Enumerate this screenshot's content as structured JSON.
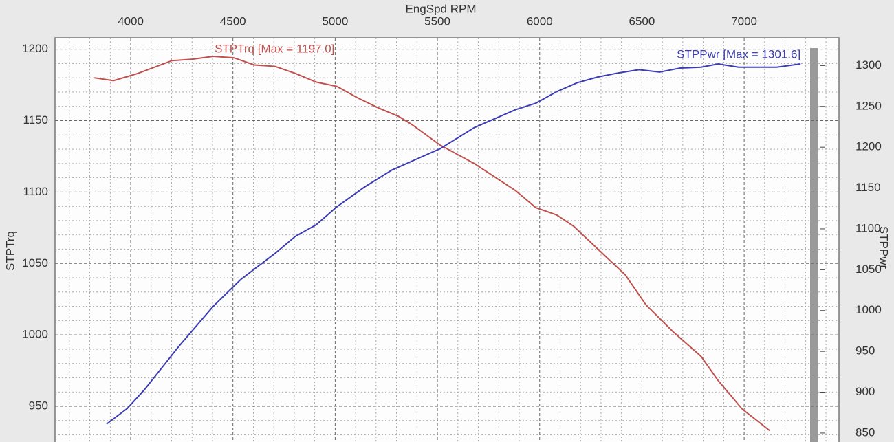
{
  "chart_data": {
    "type": "line",
    "x_label": "EngSpd RPM",
    "y_label": "STPTrq",
    "y2_label": "STPPwr",
    "xlim": [
      3630,
      7457
    ],
    "xticks": [
      4000,
      4500,
      5000,
      5500,
      6000,
      6500,
      7000
    ],
    "x_minor_ticks": [
      3700,
      3800,
      3900,
      4100,
      4200,
      4300,
      4400,
      4600,
      4700,
      4800,
      4900,
      5100,
      5200,
      5300,
      5400,
      5600,
      5700,
      5800,
      5900,
      6100,
      6200,
      6300,
      6400,
      6600,
      6700,
      6800,
      6900,
      7100,
      7200,
      7300,
      7400
    ],
    "ylim": [
      925,
      1208
    ],
    "yticks": [
      950,
      1000,
      1050,
      1100,
      1150,
      1200
    ],
    "y_minor_ticks": [
      930,
      940,
      960,
      970,
      980,
      990,
      1010,
      1020,
      1030,
      1040,
      1060,
      1070,
      1080,
      1090,
      1110,
      1120,
      1130,
      1140,
      1160,
      1170,
      1180,
      1190
    ],
    "y2lim": [
      839,
      1334
    ],
    "y2ticks": [
      850,
      900,
      950,
      1000,
      1050,
      1100,
      1150,
      1200,
      1250,
      1300
    ],
    "grid": true,
    "series": [
      {
        "name": "STPTrq [Max = 1197.0]",
        "color": "#c0504d",
        "x": [
          3822,
          3916,
          4034,
          4202,
          4302,
          4403,
          4504,
          4605,
          4706,
          4806,
          4907,
          5008,
          5109,
          5210,
          5310,
          5378,
          5512,
          5680,
          5882,
          5982,
          6083,
          6167,
          6285,
          6419,
          6520,
          6654,
          6789,
          6873,
          6991,
          7125
        ],
        "values": [
          1180,
          1178,
          1183,
          1192,
          1193,
          1195,
          1194,
          1189,
          1188,
          1183,
          1177,
          1174,
          1166,
          1159,
          1153,
          1147,
          1133,
          1120,
          1101,
          1089,
          1084,
          1076,
          1060,
          1042,
          1021,
          1002,
          985,
          968,
          948,
          933
        ]
      },
      {
        "name": "STPPwr [Max = 1301.6]",
        "color": "#3c3cb4",
        "axis": "y2",
        "x": [
          3882,
          3983,
          4067,
          4235,
          4403,
          4538,
          4706,
          4806,
          4907,
          5008,
          5142,
          5277,
          5394,
          5512,
          5680,
          5882,
          5982,
          6083,
          6184,
          6285,
          6386,
          6486,
          6587,
          6688,
          6789,
          6873,
          6973,
          7058,
          7159,
          7276
        ],
        "values": [
          861,
          880,
          903,
          956,
          1005,
          1038,
          1070,
          1091,
          1105,
          1127,
          1151,
          1172,
          1185,
          1198,
          1224,
          1246,
          1254,
          1268,
          1279,
          1286,
          1291,
          1295,
          1292,
          1297,
          1298,
          1302,
          1298,
          1298,
          1298,
          1302
        ]
      }
    ]
  }
}
